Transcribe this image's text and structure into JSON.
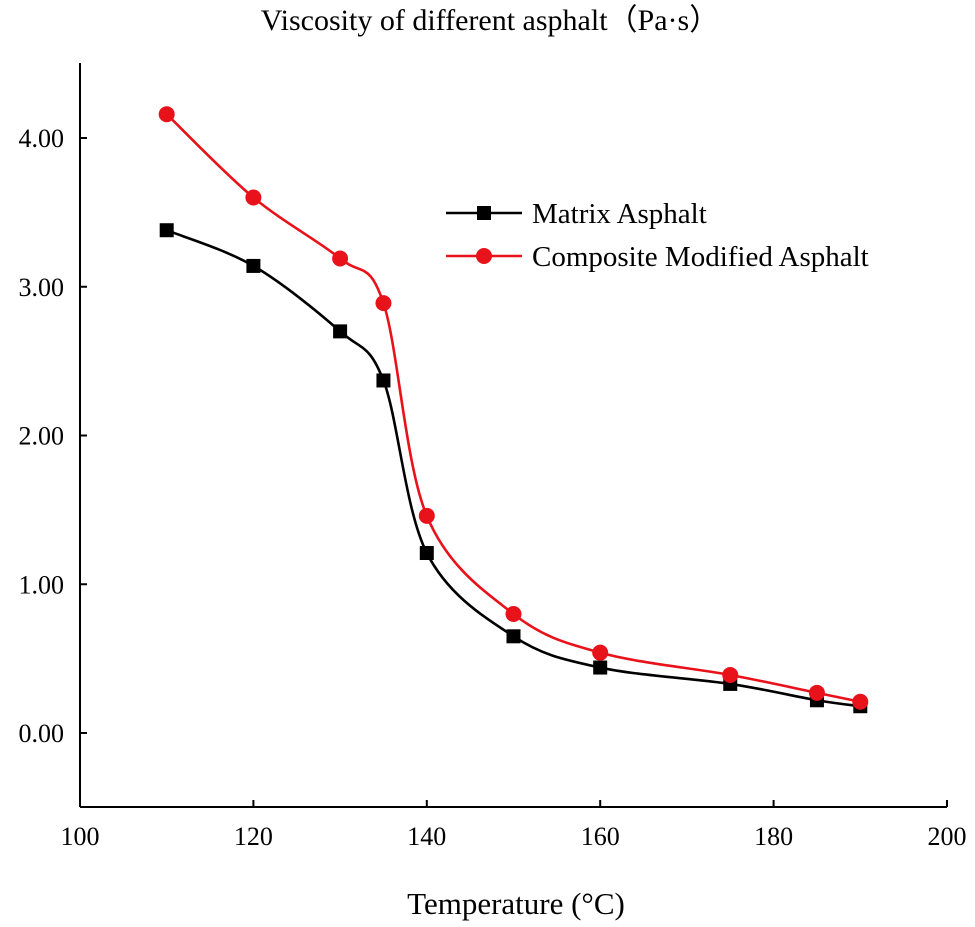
{
  "chart_data": {
    "type": "line",
    "title": "Viscosity of different asphalt（Pa·s）",
    "xlabel": "Temperature (°C)",
    "ylabel": "",
    "xlim": [
      100,
      200
    ],
    "ylim": [
      -0.5,
      4.5
    ],
    "xticks": [
      100,
      120,
      140,
      160,
      180,
      200
    ],
    "yticks": [
      0,
      1,
      2,
      3,
      4
    ],
    "ytick_labels": [
      "0.00",
      "1.00",
      "2.00",
      "3.00",
      "4.00"
    ],
    "grid": false,
    "legend_position": "top-right",
    "series": [
      {
        "name": "Matrix Asphalt",
        "color": "#000000",
        "marker": "square",
        "x": [
          110,
          120,
          130,
          135,
          140,
          150,
          160,
          175,
          185,
          190
        ],
        "y": [
          3.38,
          3.14,
          2.7,
          2.37,
          1.21,
          0.65,
          0.44,
          0.33,
          0.22,
          0.18
        ]
      },
      {
        "name": "Composite Modified Asphalt",
        "color": "#e8121b",
        "marker": "circle",
        "x": [
          110,
          120,
          130,
          135,
          140,
          150,
          160,
          175,
          185,
          190
        ],
        "y": [
          4.16,
          3.6,
          3.19,
          2.89,
          1.46,
          0.8,
          0.54,
          0.39,
          0.27,
          0.21
        ]
      }
    ]
  }
}
